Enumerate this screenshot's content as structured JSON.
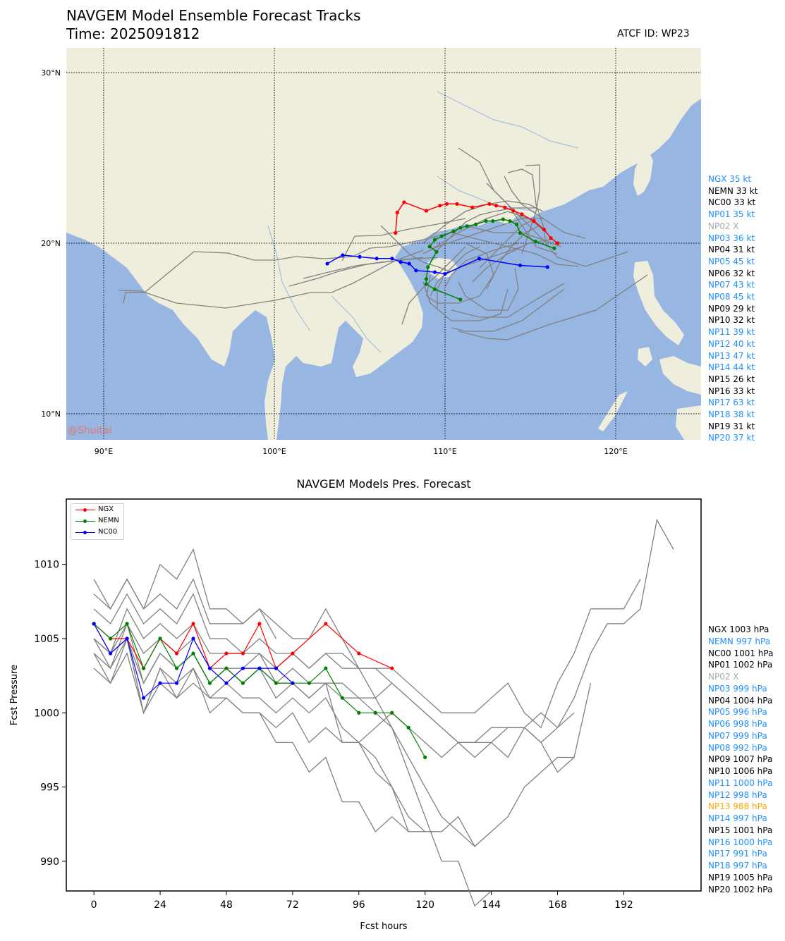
{
  "map": {
    "title_line1": "NAVGEM Model Ensemble Forecast Tracks",
    "title_line2": "Time: 2025091812",
    "atcf_id": "ATCF ID: WP23",
    "watermark": "@Shuitai",
    "lon_labels": [
      "90°E",
      "100°E",
      "110°E",
      "120°E"
    ],
    "lat_labels": [
      "30°N",
      "20°N",
      "10°N"
    ],
    "colors": {
      "land": "#efeedc",
      "sea": "#97b6e1",
      "track": "#808080"
    },
    "tracks": {
      "NGX": {
        "color": "#ff0000",
        "points": [
          [
            116.6,
            20.0
          ],
          [
            116.2,
            20.3
          ],
          [
            115.8,
            20.8
          ],
          [
            115.2,
            21.3
          ],
          [
            114.5,
            21.7
          ],
          [
            114.0,
            21.9
          ],
          [
            113.5,
            22.1
          ],
          [
            113.0,
            22.2
          ],
          [
            112.6,
            22.3
          ],
          [
            111.6,
            22.1
          ],
          [
            110.7,
            22.3
          ],
          [
            110.1,
            22.3
          ],
          [
            109.7,
            22.2
          ],
          [
            108.9,
            21.9
          ],
          [
            107.6,
            22.4
          ],
          [
            107.2,
            21.8
          ],
          [
            107.1,
            20.6
          ]
        ]
      },
      "NEMN": {
        "color": "#008000",
        "points": [
          [
            116.4,
            19.7
          ],
          [
            115.3,
            20.1
          ],
          [
            114.4,
            20.6
          ],
          [
            114.2,
            21.1
          ],
          [
            113.8,
            21.3
          ],
          [
            113.4,
            21.4
          ],
          [
            112.8,
            21.3
          ],
          [
            112.4,
            21.3
          ],
          [
            111.8,
            21.1
          ],
          [
            111.3,
            21.0
          ],
          [
            110.9,
            20.9
          ],
          [
            110.5,
            20.7
          ],
          [
            109.8,
            20.4
          ],
          [
            109.4,
            20.2
          ],
          [
            109.1,
            19.8
          ],
          [
            109.5,
            19.5
          ],
          [
            109.0,
            18.6
          ],
          [
            108.9,
            17.9
          ],
          [
            108.9,
            17.6
          ],
          [
            109.4,
            17.3
          ],
          [
            110.9,
            16.7
          ]
        ]
      },
      "NC00": {
        "color": "#0000ff",
        "points": [
          [
            116.0,
            18.6
          ],
          [
            114.4,
            18.7
          ],
          [
            112.0,
            19.1
          ],
          [
            110.0,
            18.2
          ],
          [
            109.4,
            18.3
          ],
          [
            108.3,
            18.4
          ],
          [
            107.9,
            18.8
          ],
          [
            107.4,
            18.9
          ],
          [
            106.9,
            19.1
          ],
          [
            106.0,
            19.1
          ],
          [
            105.0,
            19.2
          ],
          [
            104.0,
            19.3
          ],
          [
            103.1,
            18.8
          ]
        ]
      }
    },
    "ensemble_legend": [
      {
        "text": "NGX 35 kt",
        "color": "#1e90ff"
      },
      {
        "text": "NEMN 33 kt",
        "color": "#000000"
      },
      {
        "text": "NC00 33 kt",
        "color": "#000000"
      },
      {
        "text": "NP01 35 kt",
        "color": "#1e90ff"
      },
      {
        "text": "NP02 X",
        "color": "#a9a9a9"
      },
      {
        "text": "NP03 36 kt",
        "color": "#1e90ff"
      },
      {
        "text": "NP04 31 kt",
        "color": "#000000"
      },
      {
        "text": "NP05 45 kt",
        "color": "#1e90ff"
      },
      {
        "text": "NP06 32 kt",
        "color": "#000000"
      },
      {
        "text": "NP07 43 kt",
        "color": "#1e90ff"
      },
      {
        "text": "NP08 45 kt",
        "color": "#1e90ff"
      },
      {
        "text": "NP09 29 kt",
        "color": "#000000"
      },
      {
        "text": "NP10 32 kt",
        "color": "#000000"
      },
      {
        "text": "NP11 39 kt",
        "color": "#1e90ff"
      },
      {
        "text": "NP12 40 kt",
        "color": "#1e90ff"
      },
      {
        "text": "NP13 47 kt",
        "color": "#1e90ff"
      },
      {
        "text": "NP14 44 kt",
        "color": "#1e90ff"
      },
      {
        "text": "NP15 26 kt",
        "color": "#000000"
      },
      {
        "text": "NP16 33 kt",
        "color": "#000000"
      },
      {
        "text": "NP17 63 kt",
        "color": "#1e90ff"
      },
      {
        "text": "NP18 38 kt",
        "color": "#1e90ff"
      },
      {
        "text": "NP19 31 kt",
        "color": "#000000"
      },
      {
        "text": "NP20 37 kt",
        "color": "#1e90ff"
      }
    ]
  },
  "chart_data": {
    "type": "line",
    "title": "NAVGEM Models Pres. Forecast",
    "xlabel": "Fcst hours",
    "ylabel": "Fcst Pressure",
    "xlim": [
      -10,
      220
    ],
    "ylim": [
      988,
      1014.4
    ],
    "xticks": [
      0,
      24,
      48,
      72,
      96,
      120,
      144,
      168,
      192
    ],
    "yticks": [
      990,
      995,
      1000,
      1005,
      1010
    ],
    "legend": "upper-left",
    "series": [
      {
        "name": "NGX",
        "color": "#ff0000",
        "x": [
          0,
          6,
          12,
          18,
          24,
          30,
          36,
          42,
          48,
          54,
          60,
          66,
          72,
          84,
          96,
          108
        ],
        "y": [
          1006,
          1005,
          1005,
          1003,
          1005,
          1004,
          1006,
          1003,
          1004,
          1004,
          1006,
          1003,
          1004,
          1006,
          1004,
          1003
        ]
      },
      {
        "name": "NEMN",
        "color": "#008000",
        "x": [
          0,
          6,
          12,
          18,
          24,
          30,
          36,
          42,
          48,
          54,
          60,
          66,
          72,
          78,
          84,
          90,
          96,
          102,
          108,
          114,
          120
        ],
        "y": [
          1006,
          1005,
          1006,
          1003,
          1005,
          1003,
          1004,
          1002,
          1003,
          1002,
          1003,
          1002,
          1002,
          1002,
          1003,
          1001,
          1000,
          1000,
          1000,
          999,
          997
        ]
      },
      {
        "name": "NC00",
        "color": "#0000ff",
        "x": [
          0,
          6,
          12,
          18,
          24,
          30,
          36,
          42,
          48,
          54,
          60,
          66,
          72
        ],
        "y": [
          1006,
          1004,
          1005,
          1001,
          1002,
          1002,
          1005,
          1003,
          1002,
          1003,
          1003,
          1003,
          1002
        ]
      }
    ],
    "members": [
      {
        "x": [
          0,
          6,
          12,
          18,
          24,
          30,
          36,
          42,
          48,
          54,
          60,
          66
        ],
        "y": [
          1009,
          1007,
          1009,
          1007,
          1010,
          1009,
          1011,
          1007,
          1007,
          1006,
          1007,
          1005
        ]
      },
      {
        "x": [
          0,
          6,
          12,
          18,
          24,
          30,
          36,
          42,
          48,
          54,
          60,
          66,
          72,
          78,
          84,
          90,
          96,
          102,
          108,
          114,
          120,
          126,
          132,
          138,
          144
        ],
        "y": [
          1008,
          1007,
          1009,
          1007,
          1008,
          1007,
          1009,
          1006,
          1006,
          1006,
          1007,
          1006,
          1005,
          1005,
          1007,
          1005,
          1003,
          1001,
          999,
          996,
          993,
          990,
          990,
          987,
          988
        ]
      },
      {
        "x": [
          0,
          6,
          12,
          18,
          24,
          30,
          36,
          42,
          48,
          54,
          60,
          66,
          72,
          78,
          84,
          90,
          96,
          102,
          108,
          114,
          120,
          126,
          132,
          138,
          144,
          150,
          156,
          162,
          168,
          174,
          180,
          192,
          198
        ],
        "y": [
          1007,
          1006,
          1008,
          1006,
          1007,
          1006,
          1008,
          1005,
          1005,
          1004,
          1005,
          1004,
          1004,
          1003,
          1004,
          1003,
          1003,
          1003,
          1003,
          1002,
          1001,
          1000,
          1000,
          1000,
          1001,
          1002,
          1000,
          999,
          1002,
          1004,
          1007,
          1007,
          1009
        ]
      },
      {
        "x": [
          0,
          6,
          12,
          18,
          24,
          30,
          36,
          42,
          48,
          54,
          60,
          66,
          72,
          78,
          84,
          90,
          96,
          102,
          108,
          114,
          120,
          126,
          132,
          138,
          144,
          150,
          156,
          162,
          168,
          174,
          180,
          186,
          192,
          198,
          204,
          210
        ],
        "y": [
          1005,
          1004,
          1007,
          1005,
          1006,
          1005,
          1006,
          1004,
          1004,
          1004,
          1004,
          1003,
          1004,
          1003,
          1004,
          1004,
          1003,
          1003,
          1002,
          1001,
          1000,
          999,
          998,
          998,
          999,
          999,
          999,
          998,
          999,
          1001,
          1004,
          1006,
          1006,
          1007,
          1013,
          1011
        ]
      },
      {
        "x": [
          0,
          6,
          12,
          18,
          24,
          30,
          36,
          42,
          48,
          54,
          60,
          66,
          72,
          78,
          84,
          90,
          96,
          102,
          108,
          114,
          120,
          126,
          132,
          138,
          144
        ],
        "y": [
          1004,
          1003,
          1006,
          1004,
          1005,
          1004,
          1005,
          1003,
          1003,
          1003,
          1004,
          1002,
          1003,
          1002,
          1002,
          1002,
          1001,
          1000,
          999,
          997,
          995,
          993,
          992,
          991,
          992
        ]
      },
      {
        "x": [
          0,
          6,
          12,
          18,
          24,
          30,
          36,
          42,
          48,
          54,
          60,
          66,
          72,
          78,
          84,
          90,
          96,
          102,
          108,
          114,
          120,
          126,
          132,
          138,
          144,
          150,
          156,
          162,
          168,
          174,
          180
        ],
        "y": [
          1004,
          1002,
          1005,
          1002,
          1004,
          1003,
          1004,
          1002,
          1003,
          1002,
          1003,
          1002,
          1002,
          1001,
          1002,
          1001,
          1001,
          1001,
          1002,
          1001,
          1000,
          999,
          998,
          997,
          998,
          999,
          999,
          998,
          996,
          997,
          1002
        ]
      },
      {
        "x": [
          0,
          6,
          12,
          18,
          24,
          30,
          36,
          42,
          48,
          54,
          60,
          66,
          72,
          78,
          84,
          90,
          96,
          102,
          108,
          114,
          120
        ],
        "y": [
          1003,
          1002,
          1004,
          1000,
          1003,
          1001,
          1003,
          1001,
          1002,
          1001,
          1001,
          1000,
          1001,
          1000,
          1001,
          999,
          998,
          997,
          995,
          993,
          992
        ]
      },
      {
        "x": [
          0,
          6,
          12,
          18,
          24,
          30,
          36,
          42,
          48,
          54,
          60,
          66,
          72,
          78,
          84,
          90,
          96,
          102,
          108,
          114,
          120,
          126,
          132,
          138,
          144,
          150,
          156,
          162,
          168,
          174
        ],
        "y": [
          1005,
          1003,
          1005,
          1000,
          1002,
          1001,
          1002,
          1001,
          1001,
          1000,
          1000,
          999,
          1000,
          998,
          999,
          998,
          998,
          999,
          1000,
          999,
          998,
          997,
          998,
          998,
          998,
          997,
          999,
          1000,
          999,
          1000
        ]
      },
      {
        "x": [
          0,
          6,
          12,
          18,
          24,
          30,
          36,
          42,
          48,
          54,
          60,
          66,
          72,
          78,
          84,
          90,
          96,
          102,
          108,
          114
        ],
        "y": [
          1006,
          1004,
          1006,
          1002,
          1004,
          1003,
          1004,
          1002,
          1003,
          1002,
          1003,
          1001,
          1002,
          1001,
          1002,
          998,
          998,
          996,
          995,
          992
        ]
      },
      {
        "x": [
          0,
          6,
          12,
          18,
          24,
          30,
          36,
          42,
          48,
          54,
          60,
          66,
          72,
          78,
          84,
          90,
          96,
          102,
          108,
          114,
          120,
          126,
          132,
          138,
          144,
          150,
          156,
          162,
          168,
          174
        ],
        "y": [
          1005,
          1004,
          1005,
          1000,
          1003,
          1002,
          1003,
          1000,
          1001,
          1000,
          1000,
          998,
          998,
          996,
          997,
          994,
          994,
          992,
          993,
          992,
          992,
          992,
          993,
          991,
          992,
          993,
          995,
          996,
          997,
          997
        ]
      }
    ]
  },
  "pressure_legend": [
    {
      "text": "NGX 1003 hPa",
      "color": "#000000"
    },
    {
      "text": "NEMN 997 hPa",
      "color": "#1e90ff"
    },
    {
      "text": "NC00 1001 hPa",
      "color": "#000000"
    },
    {
      "text": "NP01 1002 hPa",
      "color": "#000000"
    },
    {
      "text": "NP02 X",
      "color": "#a9a9a9"
    },
    {
      "text": "NP03 999 hPa",
      "color": "#1e90ff"
    },
    {
      "text": "NP04 1004 hPa",
      "color": "#000000"
    },
    {
      "text": "NP05 996 hPa",
      "color": "#1e90ff"
    },
    {
      "text": "NP06 998 hPa",
      "color": "#1e90ff"
    },
    {
      "text": "NP07 999 hPa",
      "color": "#1e90ff"
    },
    {
      "text": "NP08 992 hPa",
      "color": "#1e90ff"
    },
    {
      "text": "NP09 1007 hPa",
      "color": "#000000"
    },
    {
      "text": "NP10 1006 hPa",
      "color": "#000000"
    },
    {
      "text": "NP11 1000 hPa",
      "color": "#1e90ff"
    },
    {
      "text": "NP12 998 hPa",
      "color": "#1e90ff"
    },
    {
      "text": "NP13 988 hPa",
      "color": "#ffa500"
    },
    {
      "text": "NP14 997 hPa",
      "color": "#1e90ff"
    },
    {
      "text": "NP15 1001 hPa",
      "color": "#000000"
    },
    {
      "text": "NP16 1000 hPa",
      "color": "#1e90ff"
    },
    {
      "text": "NP17 991 hPa",
      "color": "#1e90ff"
    },
    {
      "text": "NP18 997 hPa",
      "color": "#1e90ff"
    },
    {
      "text": "NP19 1005 hPa",
      "color": "#000000"
    },
    {
      "text": "NP20 1002 hPa",
      "color": "#000000"
    }
  ]
}
